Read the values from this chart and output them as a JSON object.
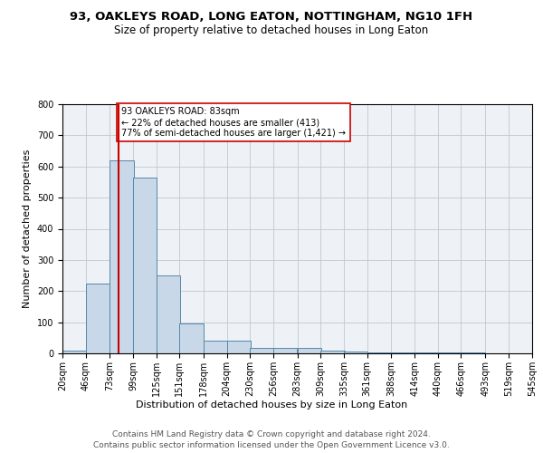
{
  "title1": "93, OAKLEYS ROAD, LONG EATON, NOTTINGHAM, NG10 1FH",
  "title2": "Size of property relative to detached houses in Long Eaton",
  "xlabel": "Distribution of detached houses by size in Long Eaton",
  "ylabel": "Number of detached properties",
  "bar_left_edges": [
    20,
    46,
    73,
    99,
    125,
    151,
    178,
    204,
    230,
    256,
    283,
    309,
    335,
    361,
    388,
    414,
    440,
    466,
    493,
    519
  ],
  "bar_heights": [
    8,
    225,
    620,
    565,
    250,
    95,
    42,
    42,
    17,
    17,
    17,
    8,
    5,
    3,
    3,
    2,
    2,
    2,
    1,
    1
  ],
  "bin_width": 26.5,
  "bar_color": "#c8d8e8",
  "bar_edge_color": "#5588aa",
  "property_size": 83,
  "red_line_color": "#cc0000",
  "annotation_text": "93 OAKLEYS ROAD: 83sqm\n← 22% of detached houses are smaller (413)\n77% of semi-detached houses are larger (1,421) →",
  "annotation_box_color": "#ffffff",
  "annotation_box_edge": "#cc0000",
  "ylim": [
    0,
    800
  ],
  "yticks": [
    0,
    100,
    200,
    300,
    400,
    500,
    600,
    700,
    800
  ],
  "xtick_labels": [
    "20sqm",
    "46sqm",
    "73sqm",
    "99sqm",
    "125sqm",
    "151sqm",
    "178sqm",
    "204sqm",
    "230sqm",
    "256sqm",
    "283sqm",
    "309sqm",
    "335sqm",
    "361sqm",
    "388sqm",
    "414sqm",
    "440sqm",
    "466sqm",
    "493sqm",
    "519sqm",
    "545sqm"
  ],
  "footer1": "Contains HM Land Registry data © Crown copyright and database right 2024.",
  "footer2": "Contains public sector information licensed under the Open Government Licence v3.0.",
  "bg_color": "#eef2f6",
  "grid_color": "#c0c8d0",
  "title_fontsize": 9.5,
  "subtitle_fontsize": 8.5,
  "axis_label_fontsize": 8,
  "tick_fontsize": 7,
  "footer_fontsize": 6.5
}
